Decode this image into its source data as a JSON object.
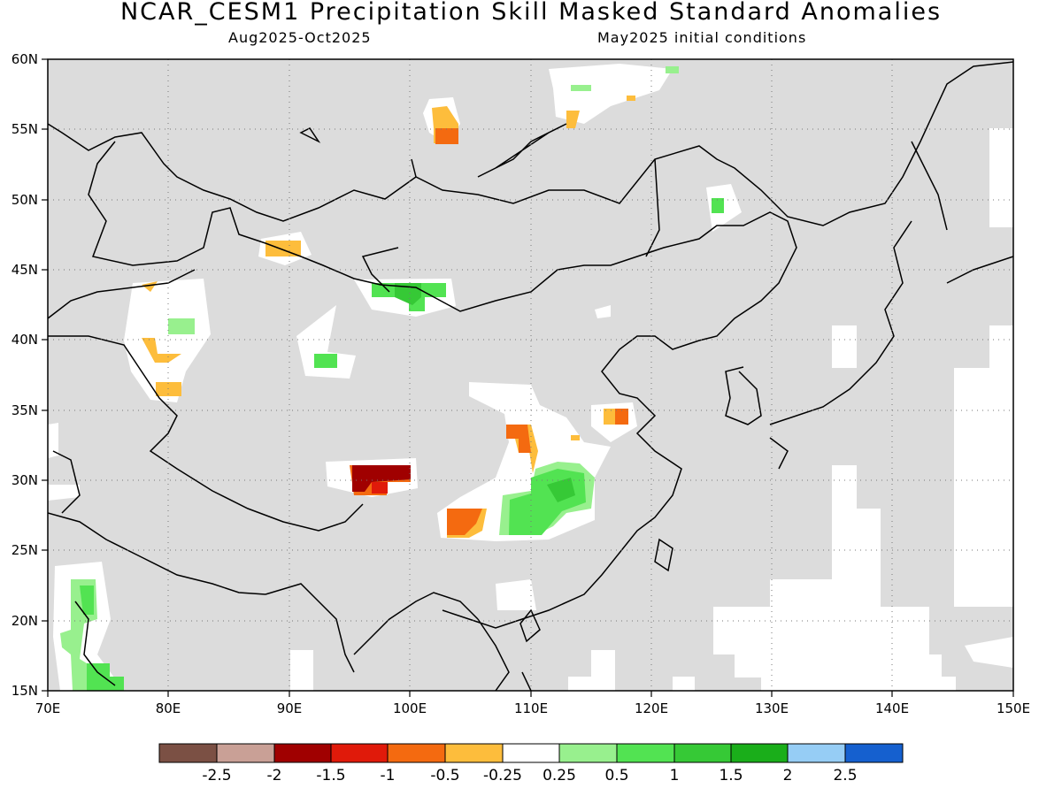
{
  "title": "NCAR_CESM1 Precipitation Skill Masked Standard Anomalies",
  "subtitle_left": "Aug2025-Oct2025",
  "subtitle_right": "May2025 initial conditions",
  "map": {
    "lon_range": [
      70,
      150
    ],
    "lat_range": [
      15,
      60
    ],
    "lon_ticks": [
      "70E",
      "80E",
      "90E",
      "100E",
      "110E",
      "120E",
      "130E",
      "140E",
      "150E"
    ],
    "lat_ticks": [
      "15N",
      "20N",
      "25N",
      "30N",
      "35N",
      "40N",
      "45N",
      "50N",
      "55N",
      "60N"
    ],
    "grid": true,
    "masked_color": "#dcdcdc",
    "region": "East Asia"
  },
  "colorbar": {
    "labels": [
      "-2.5",
      "-2",
      "-1.5",
      "-1",
      "-0.5",
      "-0.25",
      "0.25",
      "0.5",
      "1",
      "1.5",
      "2",
      "2.5"
    ],
    "colors": [
      "#7b5044",
      "#c9a096",
      "#a00000",
      "#e01a0a",
      "#f46a10",
      "#fdbd3c",
      "#ffffff",
      "#98f08e",
      "#52e352",
      "#36c936",
      "#1aae1a",
      "#96cdf5",
      "#1560cf"
    ]
  }
}
